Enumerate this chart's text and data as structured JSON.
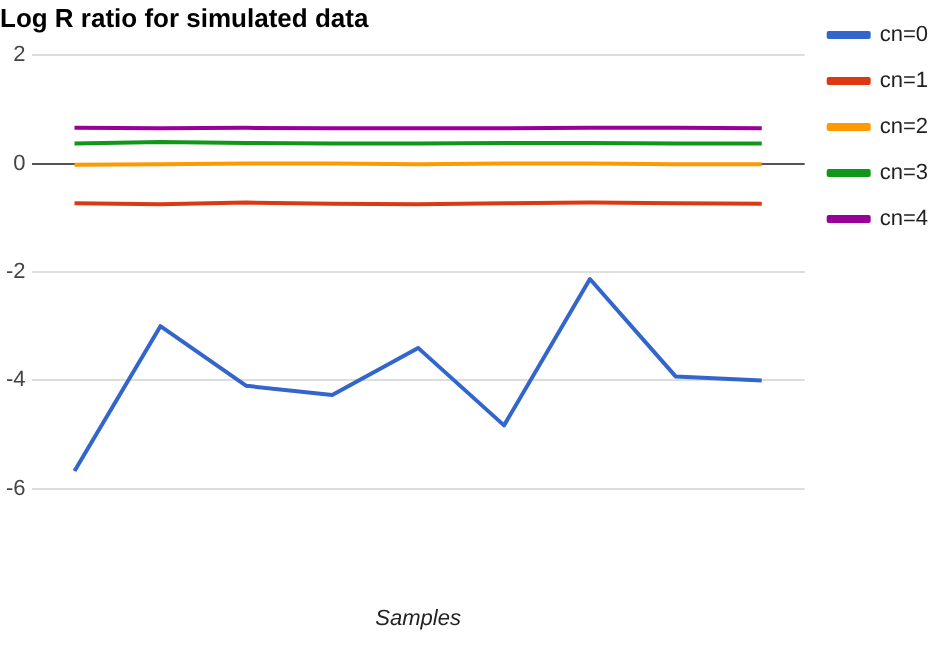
{
  "chart_data": {
    "type": "line",
    "title": "Log R ratio for simulated data",
    "xlabel": "Samples",
    "categories": [
      null,
      null,
      null,
      null,
      null,
      null,
      null,
      null,
      null
    ],
    "series": [
      {
        "name": "cn=0",
        "color": "#3366cc",
        "values": [
          -5.67,
          -3.0,
          -4.1,
          -4.27,
          -3.4,
          -4.83,
          -2.13,
          -3.93,
          -4.0
        ]
      },
      {
        "name": "cn=1",
        "color": "#dc3912",
        "values": [
          -0.73,
          -0.75,
          -0.72,
          -0.74,
          -0.75,
          -0.73,
          -0.72,
          -0.73,
          -0.74
        ]
      },
      {
        "name": "cn=2",
        "color": "#ff9900",
        "values": [
          -0.02,
          -0.01,
          0,
          0,
          -0.01,
          0,
          0,
          -0.01,
          -0.01
        ]
      },
      {
        "name": "cn=3",
        "color": "#109618",
        "values": [
          0.37,
          0.4,
          0.38,
          0.37,
          0.37,
          0.38,
          0.38,
          0.37,
          0.37
        ]
      },
      {
        "name": "cn=4",
        "color": "#990099",
        "values": [
          0.66,
          0.65,
          0.66,
          0.65,
          0.65,
          0.65,
          0.66,
          0.66,
          0.65
        ]
      }
    ],
    "ylim": [
      -6,
      2
    ],
    "yticks": [
      2,
      0,
      -2,
      -4,
      -6
    ],
    "grid": "y",
    "legend": "right",
    "marker": "none",
    "line_style": "solid"
  }
}
